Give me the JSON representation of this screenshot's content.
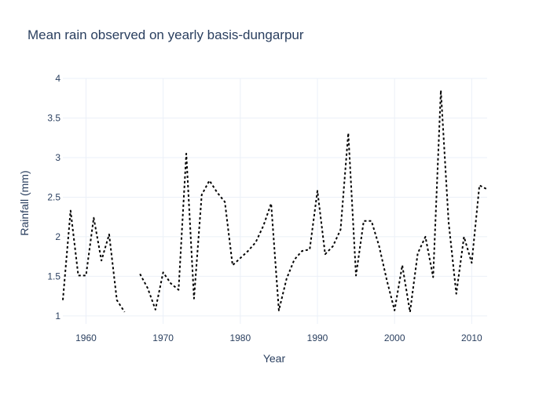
{
  "chart_data": {
    "type": "line",
    "title": "Mean rain observed on yearly basis-dungarpur",
    "xlabel": "Year",
    "ylabel": "Rainfall (mm)",
    "xlim": [
      1957,
      2012
    ],
    "ylim": [
      0.9,
      4.0
    ],
    "xticks": [
      1960,
      1970,
      1980,
      1990,
      2000,
      2010
    ],
    "yticks": [
      1,
      1.5,
      2,
      2.5,
      3,
      3.5,
      4
    ],
    "xtick_labels": [
      "1960",
      "1970",
      "1980",
      "1990",
      "2000",
      "2010"
    ],
    "ytick_labels": [
      "1",
      "1.5",
      "2",
      "2.5",
      "3",
      "3.5",
      "4"
    ],
    "grid": true,
    "series": [
      {
        "line_color": "#000000",
        "line_style": "dotted",
        "x": [
          1957,
          1958,
          1959,
          1960,
          1961,
          1962,
          1963,
          1964,
          1965,
          1966,
          1967,
          1968,
          1969,
          1970,
          1971,
          1972,
          1973,
          1974,
          1975,
          1976,
          1977,
          1978,
          1979,
          1980,
          1981,
          1982,
          1983,
          1984,
          1985,
          1986,
          1987,
          1988,
          1989,
          1990,
          1991,
          1992,
          1993,
          1994,
          1995,
          1996,
          1997,
          1998,
          1999,
          2000,
          2001,
          2002,
          2003,
          2004,
          2005,
          2006,
          2007,
          2008,
          2009,
          2010,
          2011,
          2012
        ],
        "y": [
          1.2,
          2.33,
          1.51,
          1.51,
          2.24,
          1.7,
          2.03,
          1.2,
          1.05,
          null,
          1.53,
          1.35,
          1.08,
          1.55,
          1.41,
          1.33,
          3.05,
          1.22,
          2.53,
          2.71,
          2.56,
          2.44,
          1.64,
          1.73,
          1.82,
          1.93,
          2.14,
          2.42,
          1.07,
          1.47,
          1.71,
          1.82,
          1.84,
          2.58,
          1.78,
          1.88,
          2.09,
          3.31,
          1.51,
          2.2,
          2.2,
          1.88,
          1.45,
          1.07,
          1.64,
          1.05,
          1.79,
          2.0,
          1.49,
          3.85,
          2.19,
          1.28,
          2.0,
          1.67,
          2.65,
          2.6
        ]
      }
    ]
  }
}
